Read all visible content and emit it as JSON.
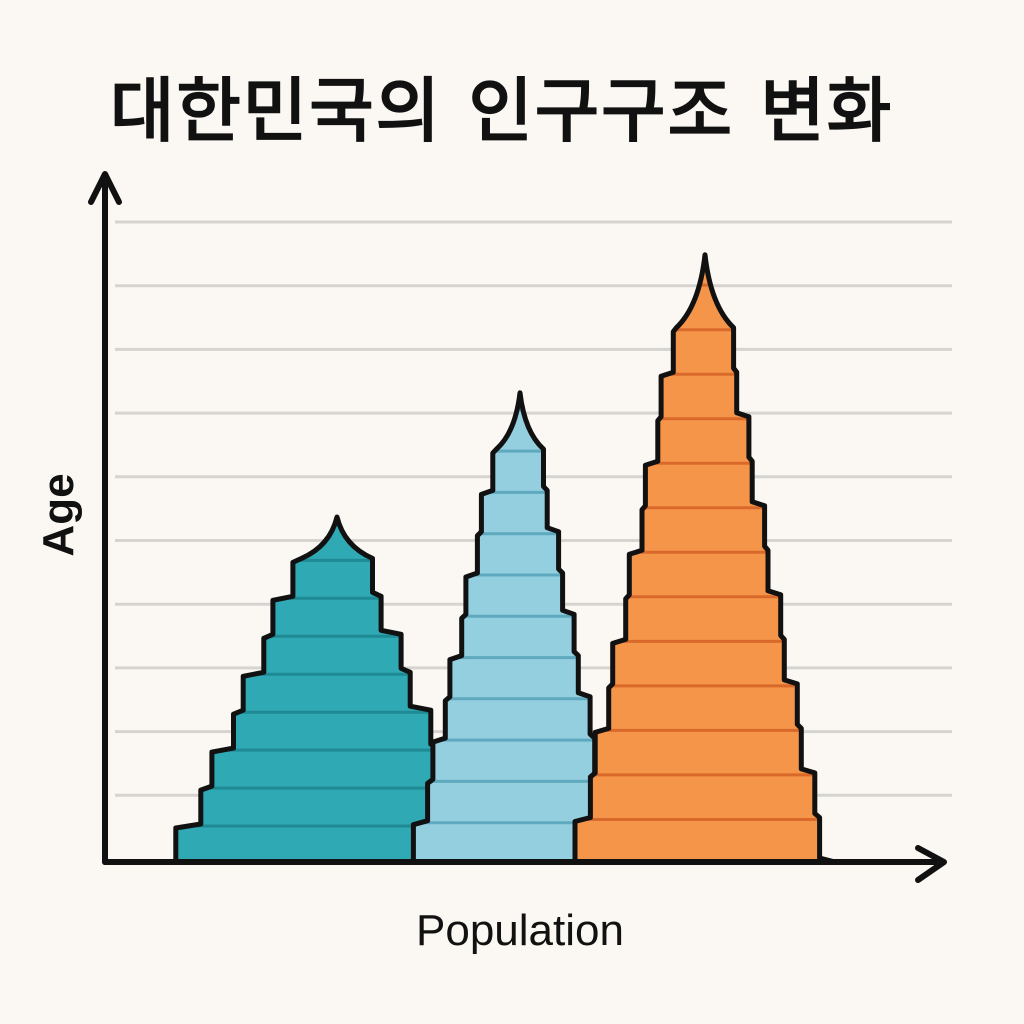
{
  "chart_data": {
    "type": "area",
    "title": "대한민국의 인구구조 변화",
    "xlabel": "Population",
    "ylabel": "Age",
    "grid": true,
    "colors": {
      "background": "#fbf8f3",
      "grid": "#d6d4d0",
      "axis": "#111111"
    },
    "series": [
      {
        "color": "#2fa9b4",
        "band_color": "#1f8a94",
        "relative_height": 0.5,
        "relative_width": 0.62
      },
      {
        "color": "#94cfe0",
        "band_color": "#5fa9bf",
        "relative_height": 0.68,
        "relative_width": 0.41
      },
      {
        "color": "#f4954a",
        "band_color": "#d9692a",
        "relative_height": 0.88,
        "relative_width": 0.5
      }
    ]
  }
}
